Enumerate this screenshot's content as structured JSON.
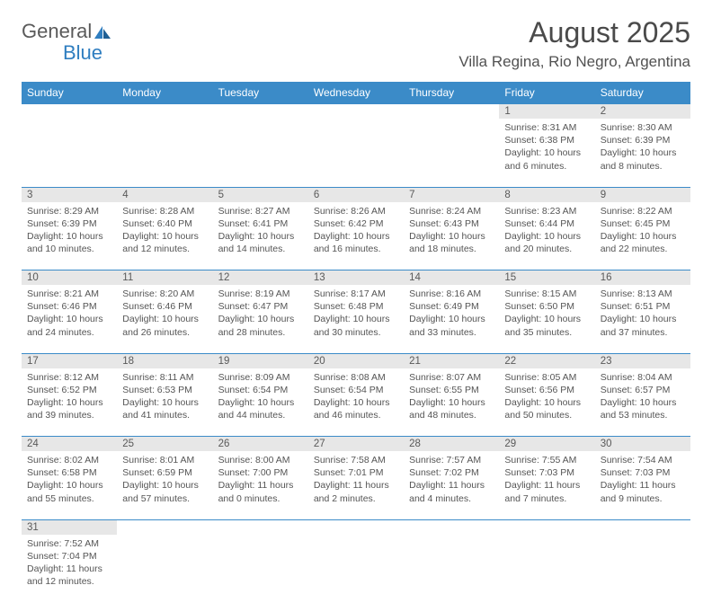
{
  "brand": {
    "name1": "General",
    "name2": "Blue"
  },
  "title": "August 2025",
  "location": "Villa Regina, Rio Negro, Argentina",
  "colors": {
    "header_bg": "#3b8bc8",
    "header_text": "#ffffff",
    "daynum_bg": "#e7e7e7",
    "text": "#555555",
    "logo_accent": "#2f7ec0"
  },
  "day_headers": [
    "Sunday",
    "Monday",
    "Tuesday",
    "Wednesday",
    "Thursday",
    "Friday",
    "Saturday"
  ],
  "weeks": [
    [
      null,
      null,
      null,
      null,
      null,
      {
        "n": "1",
        "sr": "8:31 AM",
        "ss": "6:38 PM",
        "dh": "10",
        "dm": "6"
      },
      {
        "n": "2",
        "sr": "8:30 AM",
        "ss": "6:39 PM",
        "dh": "10",
        "dm": "8"
      }
    ],
    [
      {
        "n": "3",
        "sr": "8:29 AM",
        "ss": "6:39 PM",
        "dh": "10",
        "dm": "10"
      },
      {
        "n": "4",
        "sr": "8:28 AM",
        "ss": "6:40 PM",
        "dh": "10",
        "dm": "12"
      },
      {
        "n": "5",
        "sr": "8:27 AM",
        "ss": "6:41 PM",
        "dh": "10",
        "dm": "14"
      },
      {
        "n": "6",
        "sr": "8:26 AM",
        "ss": "6:42 PM",
        "dh": "10",
        "dm": "16"
      },
      {
        "n": "7",
        "sr": "8:24 AM",
        "ss": "6:43 PM",
        "dh": "10",
        "dm": "18"
      },
      {
        "n": "8",
        "sr": "8:23 AM",
        "ss": "6:44 PM",
        "dh": "10",
        "dm": "20"
      },
      {
        "n": "9",
        "sr": "8:22 AM",
        "ss": "6:45 PM",
        "dh": "10",
        "dm": "22"
      }
    ],
    [
      {
        "n": "10",
        "sr": "8:21 AM",
        "ss": "6:46 PM",
        "dh": "10",
        "dm": "24"
      },
      {
        "n": "11",
        "sr": "8:20 AM",
        "ss": "6:46 PM",
        "dh": "10",
        "dm": "26"
      },
      {
        "n": "12",
        "sr": "8:19 AM",
        "ss": "6:47 PM",
        "dh": "10",
        "dm": "28"
      },
      {
        "n": "13",
        "sr": "8:17 AM",
        "ss": "6:48 PM",
        "dh": "10",
        "dm": "30"
      },
      {
        "n": "14",
        "sr": "8:16 AM",
        "ss": "6:49 PM",
        "dh": "10",
        "dm": "33"
      },
      {
        "n": "15",
        "sr": "8:15 AM",
        "ss": "6:50 PM",
        "dh": "10",
        "dm": "35"
      },
      {
        "n": "16",
        "sr": "8:13 AM",
        "ss": "6:51 PM",
        "dh": "10",
        "dm": "37"
      }
    ],
    [
      {
        "n": "17",
        "sr": "8:12 AM",
        "ss": "6:52 PM",
        "dh": "10",
        "dm": "39"
      },
      {
        "n": "18",
        "sr": "8:11 AM",
        "ss": "6:53 PM",
        "dh": "10",
        "dm": "41"
      },
      {
        "n": "19",
        "sr": "8:09 AM",
        "ss": "6:54 PM",
        "dh": "10",
        "dm": "44"
      },
      {
        "n": "20",
        "sr": "8:08 AM",
        "ss": "6:54 PM",
        "dh": "10",
        "dm": "46"
      },
      {
        "n": "21",
        "sr": "8:07 AM",
        "ss": "6:55 PM",
        "dh": "10",
        "dm": "48"
      },
      {
        "n": "22",
        "sr": "8:05 AM",
        "ss": "6:56 PM",
        "dh": "10",
        "dm": "50"
      },
      {
        "n": "23",
        "sr": "8:04 AM",
        "ss": "6:57 PM",
        "dh": "10",
        "dm": "53"
      }
    ],
    [
      {
        "n": "24",
        "sr": "8:02 AM",
        "ss": "6:58 PM",
        "dh": "10",
        "dm": "55"
      },
      {
        "n": "25",
        "sr": "8:01 AM",
        "ss": "6:59 PM",
        "dh": "10",
        "dm": "57"
      },
      {
        "n": "26",
        "sr": "8:00 AM",
        "ss": "7:00 PM",
        "dh": "11",
        "dm": "0"
      },
      {
        "n": "27",
        "sr": "7:58 AM",
        "ss": "7:01 PM",
        "dh": "11",
        "dm": "2"
      },
      {
        "n": "28",
        "sr": "7:57 AM",
        "ss": "7:02 PM",
        "dh": "11",
        "dm": "4"
      },
      {
        "n": "29",
        "sr": "7:55 AM",
        "ss": "7:03 PM",
        "dh": "11",
        "dm": "7"
      },
      {
        "n": "30",
        "sr": "7:54 AM",
        "ss": "7:03 PM",
        "dh": "11",
        "dm": "9"
      }
    ],
    [
      {
        "n": "31",
        "sr": "7:52 AM",
        "ss": "7:04 PM",
        "dh": "11",
        "dm": "12"
      },
      null,
      null,
      null,
      null,
      null,
      null
    ]
  ]
}
